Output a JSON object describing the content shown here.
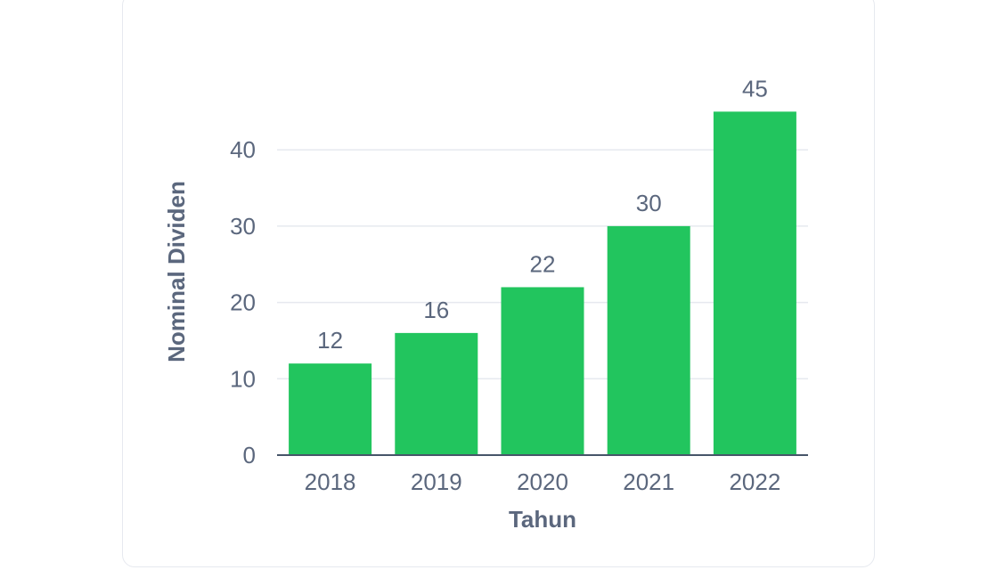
{
  "colors": {
    "bar": "#22c55e",
    "grid": "#e6e9ef",
    "axis": "#475569",
    "text": "#5b677d"
  },
  "chart_data": {
    "type": "bar",
    "title": "",
    "xlabel": "Tahun",
    "ylabel": "Nominal Dividen",
    "categories": [
      "2018",
      "2019",
      "2020",
      "2021",
      "2022"
    ],
    "values": [
      12,
      16,
      22,
      30,
      45
    ],
    "data_labels": [
      "12",
      "16",
      "22",
      "30",
      "45"
    ],
    "ylim": [
      0,
      45
    ],
    "yticks": [
      0,
      10,
      20,
      30,
      40
    ],
    "grid": true,
    "legend": "none"
  }
}
